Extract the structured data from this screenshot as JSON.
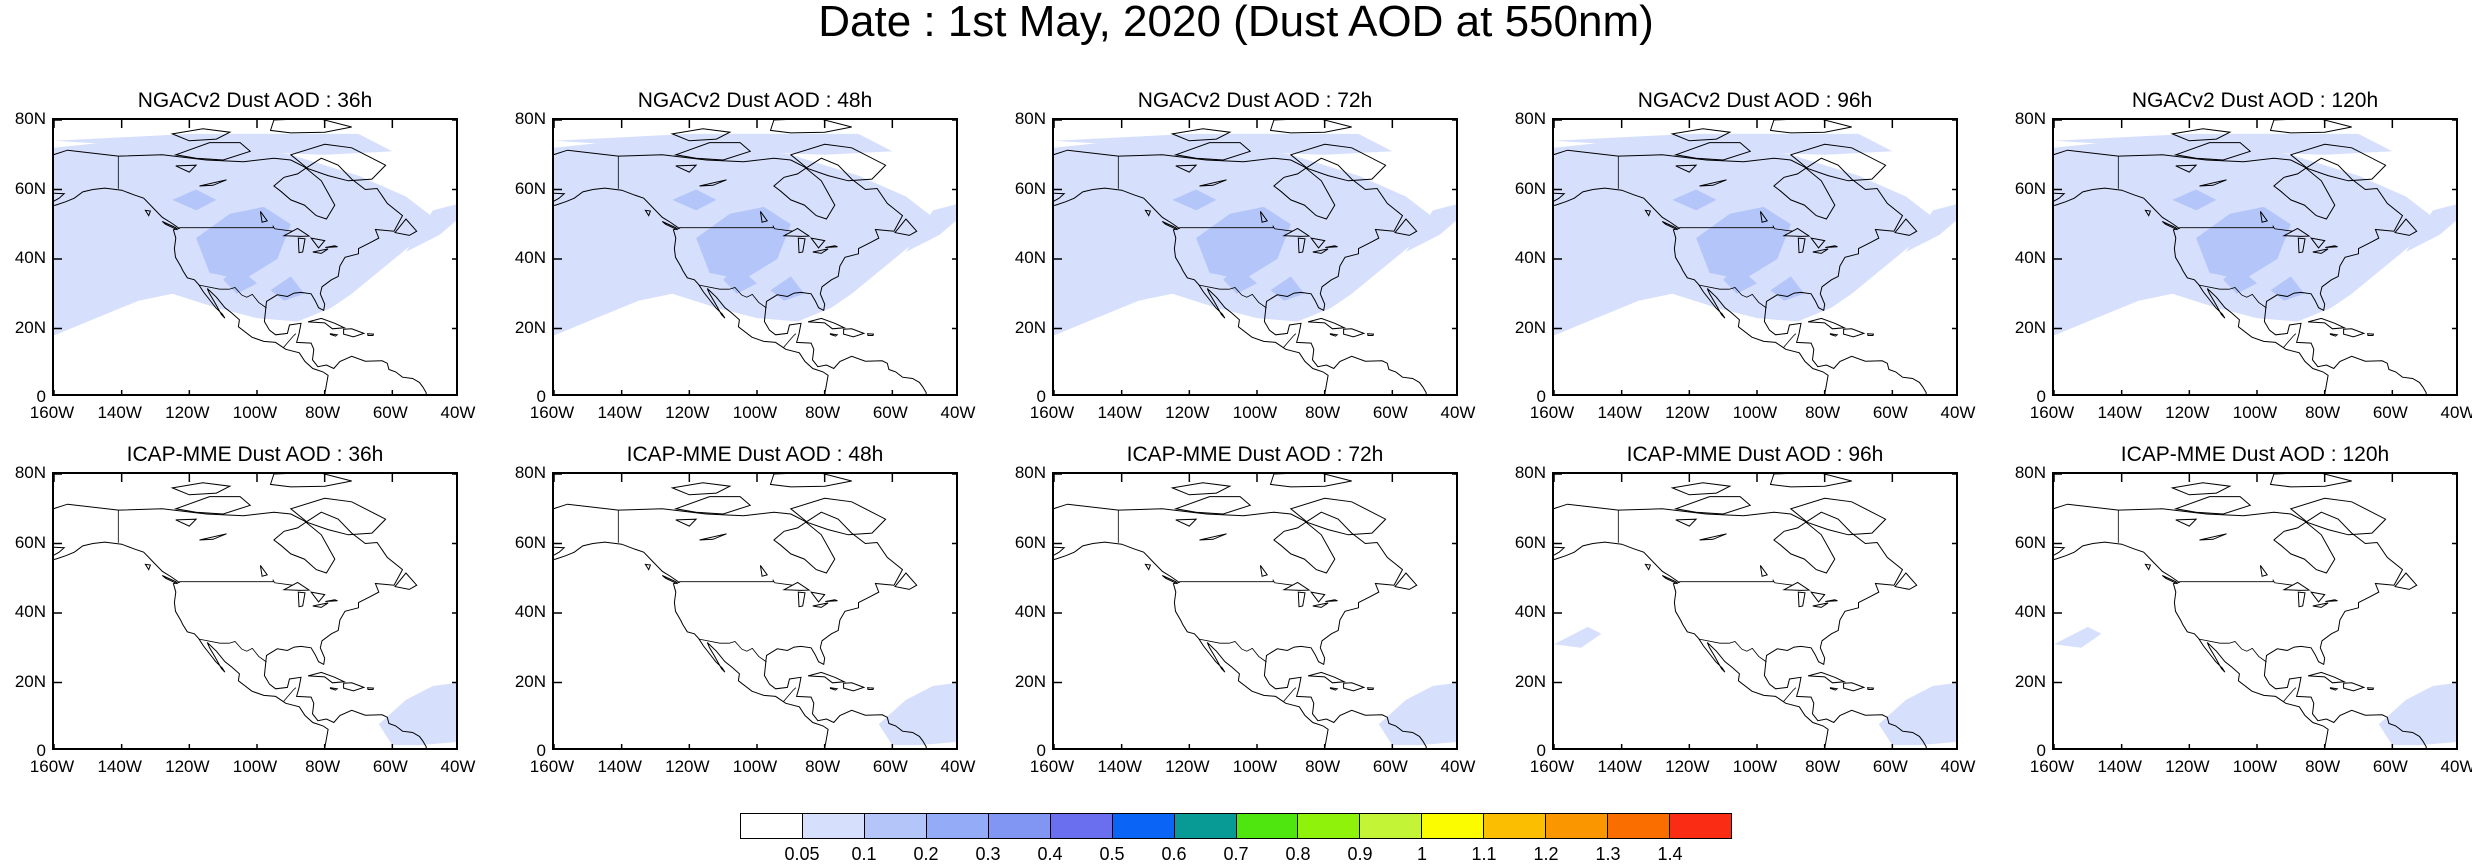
{
  "figure": {
    "title": "Date : 1st May, 2020 (Dust AOD at 550nm)"
  },
  "panels": [
    {
      "title": "NGACv2 Dust AOD : 36h",
      "model": "NGACv2",
      "lead": "36h",
      "dust_level": 2
    },
    {
      "title": "NGACv2 Dust AOD : 48h",
      "model": "NGACv2",
      "lead": "48h",
      "dust_level": 2
    },
    {
      "title": "NGACv2 Dust AOD : 72h",
      "model": "NGACv2",
      "lead": "72h",
      "dust_level": 2
    },
    {
      "title": "NGACv2 Dust AOD : 96h",
      "model": "NGACv2",
      "lead": "96h",
      "dust_level": 2
    },
    {
      "title": "NGACv2 Dust AOD : 120h",
      "model": "NGACv2",
      "lead": "120h",
      "dust_level": 2
    },
    {
      "title": "ICAP-MME Dust AOD : 36h",
      "model": "ICAP-MME",
      "lead": "36h",
      "dust_level": 1
    },
    {
      "title": "ICAP-MME Dust AOD : 48h",
      "model": "ICAP-MME",
      "lead": "48h",
      "dust_level": 1
    },
    {
      "title": "ICAP-MME Dust AOD : 72h",
      "model": "ICAP-MME",
      "lead": "72h",
      "dust_level": 1
    },
    {
      "title": "ICAP-MME Dust AOD : 96h",
      "model": "ICAP-MME",
      "lead": "96h",
      "dust_level": 1
    },
    {
      "title": "ICAP-MME Dust AOD : 120h",
      "model": "ICAP-MME",
      "lead": "120h",
      "dust_level": 1
    }
  ],
  "axes": {
    "lon_ticks": [
      "160W",
      "140W",
      "120W",
      "100W",
      "80W",
      "60W",
      "40W"
    ],
    "lat_ticks": [
      "80N",
      "60N",
      "40N",
      "20N",
      "0"
    ],
    "lon_range": [
      -160,
      -40
    ],
    "lat_range": [
      0,
      80
    ]
  },
  "colorbar": {
    "colors": [
      "#ffffff",
      "#d6dffc",
      "#b4c5fa",
      "#94acf7",
      "#8096f2",
      "#6a6ff0",
      "#0a64f5",
      "#089b96",
      "#4fe60f",
      "#8ff20a",
      "#c3f536",
      "#fcfc00",
      "#fcbe00",
      "#fa9600",
      "#fa6e00",
      "#fa2d14"
    ],
    "labels": [
      "0.05",
      "0.1",
      "0.2",
      "0.3",
      "0.4",
      "0.5",
      "0.6",
      "0.7",
      "0.8",
      "0.9",
      "1",
      "1.1",
      "1.2",
      "1.3",
      "1.4"
    ]
  }
}
